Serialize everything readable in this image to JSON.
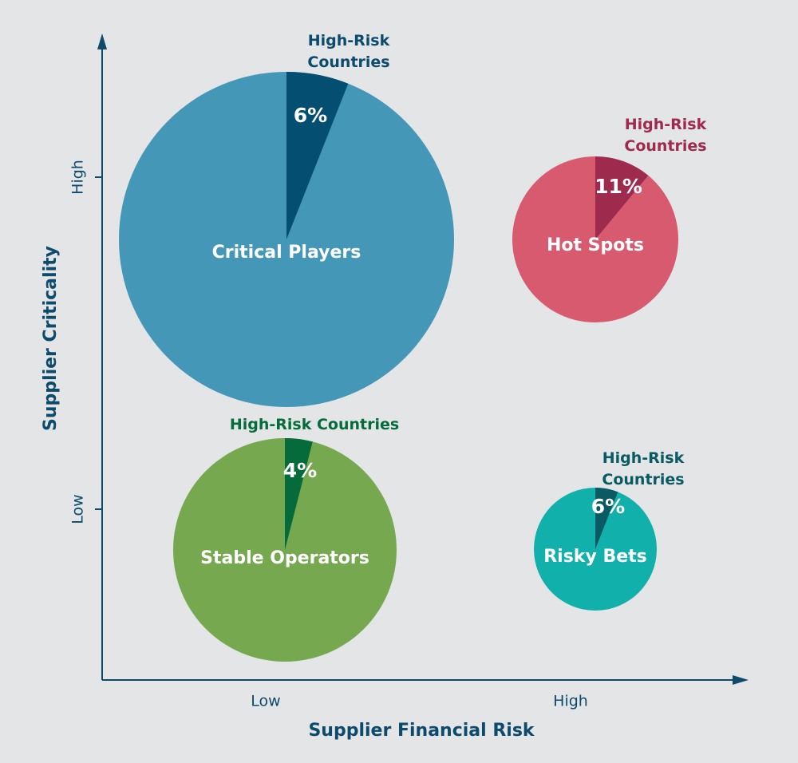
{
  "chart_data": {
    "type": "pie",
    "x_label": "Supplier Financial Risk",
    "y_label": "Supplier Criticality",
    "x_categories": [
      "Low",
      "High"
    ],
    "y_categories": [
      "Low",
      "High"
    ],
    "axis_color": "#0d4a6b",
    "pies": [
      {
        "name": "Critical Players",
        "slice_label": "High-Risk Countries",
        "value": 6,
        "value_label": "6%",
        "color": "#4597b8",
        "slice_color": "#034e71",
        "label_color": "#0b4b6e"
      },
      {
        "name": "Hot Spots",
        "slice_label": "High-Risk Countries",
        "value": 11,
        "value_label": "11%",
        "color": "#d75a6e",
        "slice_color": "#9e2a4e",
        "label_color": "#9e2a4e"
      },
      {
        "name": "Stable Operators",
        "slice_label": "High-Risk Countries",
        "value": 4,
        "value_label": "4%",
        "color": "#76a94f",
        "slice_color": "#056b3a",
        "label_color": "#056b3a"
      },
      {
        "name": "Risky Bets",
        "slice_label": "High-Risk Countries",
        "value": 6,
        "value_label": "6%",
        "color": "#11b0ab",
        "slice_color": "#0a5a63",
        "label_color": "#0a5a63"
      }
    ]
  }
}
